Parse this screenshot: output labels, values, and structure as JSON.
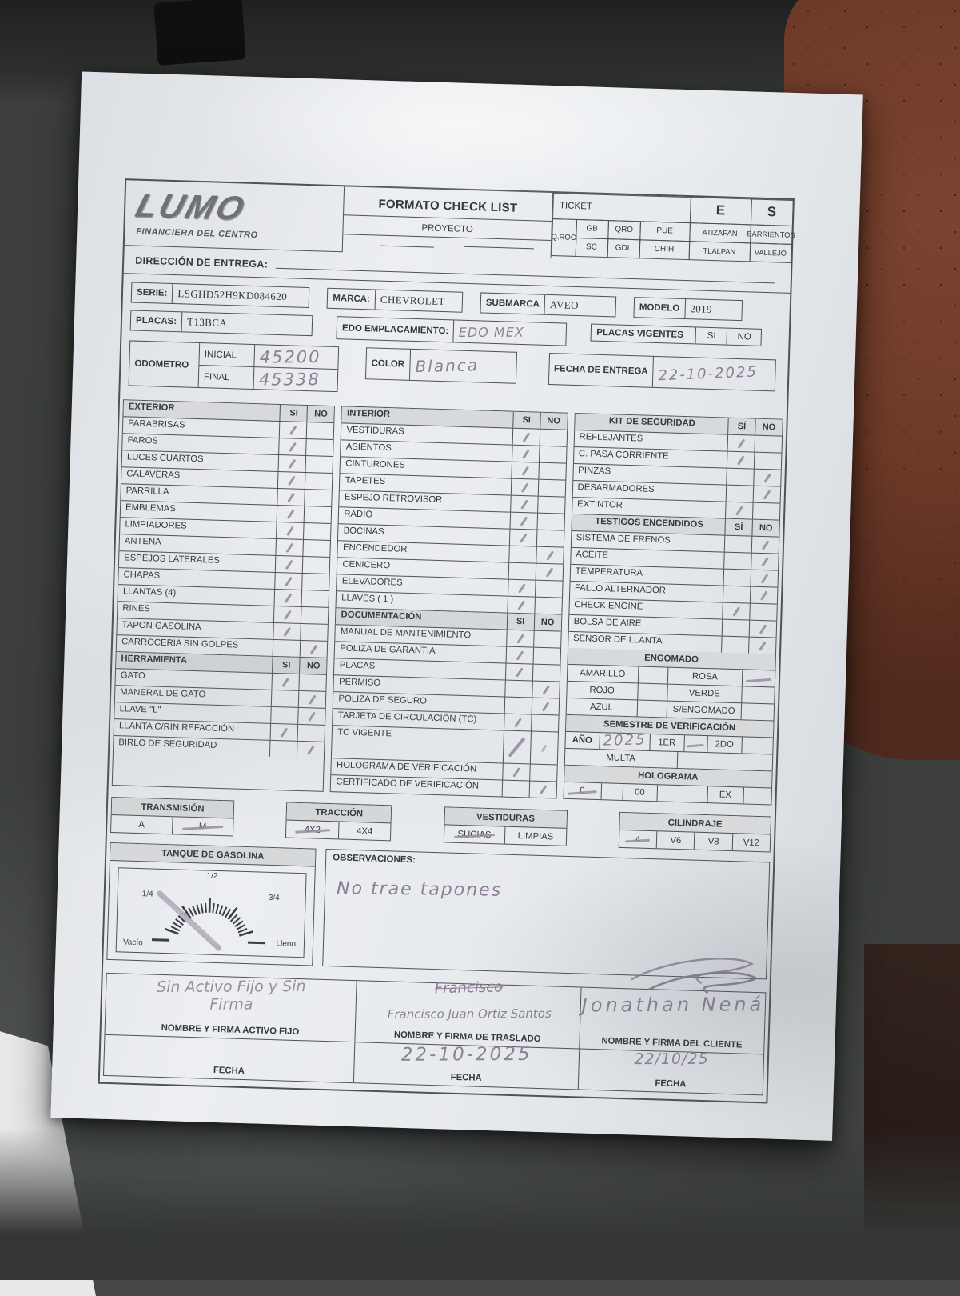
{
  "colors": {
    "paper": "#e9ebee",
    "line": "#4d5257",
    "pencil": "#8d7f95",
    "seat_gray": "#454846",
    "seat_red": "#6e3a28"
  },
  "header": {
    "logo": {
      "title": "LUMO",
      "subtitle": "FINANCIERA DEL CENTRO"
    },
    "form_title": "FORMATO CHECK LIST",
    "proyecto": "PROYECTO",
    "ticket": {
      "label": "TICKET",
      "e": "E",
      "s": "S",
      "row1": [
        "GB",
        "QRO",
        "PUE",
        "ATIZAPAN",
        "BARRIENTOS"
      ],
      "row2": [
        "SC",
        "GDL",
        "CHIH",
        "TLALPAN",
        "VALLEJO"
      ],
      "corner": "Q.ROO"
    },
    "direccion_label": "DIRECCIÓN DE ENTREGA:"
  },
  "vehicle": {
    "serie_label": "SERIE:",
    "serie": "LSGHD52H9KD084620",
    "marca_label": "MARCA:",
    "marca": "CHEVROLET",
    "submarca_label": "SUBMARCA",
    "submarca": "AVEO",
    "modelo_label": "MODELO",
    "modelo": "2019",
    "placas_label": "PLACAS:",
    "placas": "T13BCA",
    "edo_label": "EDO EMPLACAMIENTO:",
    "edo_value": "EDO MEX",
    "placas_vigentes_label": "PLACAS VIGENTES",
    "si": "SI",
    "no": "NO",
    "odometro_label": "ODOMETRO",
    "inicial_label": "INICIAL",
    "final_label": "FINAL",
    "odo_inicial": "45200",
    "odo_final": "45338",
    "color_label": "COLOR",
    "color_value": "Blanca",
    "fecha_entrega_label": "FECHA DE ENTREGA",
    "fecha_entrega": "22-10-2025"
  },
  "checklist": {
    "columns": [
      {
        "sections": [
          {
            "title": "EXTERIOR",
            "si": "SI",
            "no": "NO",
            "items": [
              {
                "label": "PARABRISAS",
                "check": "si"
              },
              {
                "label": "FAROS",
                "check": "si"
              },
              {
                "label": "LUCES CUARTOS",
                "check": "si"
              },
              {
                "label": "CALAVERAS",
                "check": "si"
              },
              {
                "label": "PARRILLA",
                "check": "si"
              },
              {
                "label": "EMBLEMAS",
                "check": "si"
              },
              {
                "label": "LIMPIADORES",
                "check": "si"
              },
              {
                "label": "ANTENA",
                "check": "si"
              },
              {
                "label": "ESPEJOS LATERALES",
                "check": "si"
              },
              {
                "label": "CHAPAS",
                "check": "si"
              },
              {
                "label": "LLANTAS (4)",
                "check": "si"
              },
              {
                "label": "RINES",
                "check": "si"
              },
              {
                "label": "TAPON GASOLINA",
                "check": "si"
              },
              {
                "label": "CARROCERIA SIN GOLPES",
                "check": "no"
              }
            ]
          },
          {
            "title": "HERRAMIENTA",
            "si": "SI",
            "no": "NO",
            "items": [
              {
                "label": "GATO",
                "check": "si"
              },
              {
                "label": "MANERAL DE GATO",
                "check": "no"
              },
              {
                "label": "LLAVE \"L\"",
                "check": "no"
              },
              {
                "label": "LLANTA C/RIN REFACCIÓN",
                "check": "si"
              },
              {
                "label": "BIRLO DE SEGURIDAD",
                "check": "no"
              }
            ]
          }
        ]
      },
      {
        "sections": [
          {
            "title": "INTERIOR",
            "si": "SI",
            "no": "NO",
            "items": [
              {
                "label": "VESTIDURAS",
                "check": "si"
              },
              {
                "label": "ASIENTOS",
                "check": "si"
              },
              {
                "label": "CINTURONES",
                "check": "si"
              },
              {
                "label": "TAPETES",
                "check": "si"
              },
              {
                "label": "ESPEJO RETROVISOR",
                "check": "si"
              },
              {
                "label": "RADIO",
                "check": "si"
              },
              {
                "label": "BOCINAS",
                "check": "si"
              },
              {
                "label": "ENCENDEDOR",
                "check": "no"
              },
              {
                "label": "CENICERO",
                "check": "no"
              },
              {
                "label": "ELEVADORES",
                "check": "si"
              },
              {
                "label": "LLAVES ( 1 )",
                "check": "si"
              }
            ]
          },
          {
            "title": "DOCUMENTACIÓN",
            "si": "SI",
            "no": "NO",
            "items": [
              {
                "label": "MANUAL DE MANTENIMIENTO",
                "check": "si"
              },
              {
                "label": "POLIZA DE GARANTIA",
                "check": "si"
              },
              {
                "label": "PLACAS",
                "check": "si"
              },
              {
                "label": "PERMISO",
                "check": "no"
              },
              {
                "label": "POLIZA DE SEGURO",
                "check": "no"
              },
              {
                "label": "TARJETA DE CIRCULACIÓN (TC)",
                "check": "si"
              },
              {
                "label": "TC VIGENTE",
                "check": "si",
                "tall": true,
                "extra_no": true
              },
              {
                "label": "HOLOGRAMA DE VERIFICACIÓN",
                "check": "si"
              },
              {
                "label": "CERTIFICADO DE VERIFICACIÓN",
                "check": "no"
              }
            ]
          }
        ]
      },
      {
        "sections": [
          {
            "title": "KIT DE SEGURIDAD",
            "si": "SÍ",
            "no": "NO",
            "items": [
              {
                "label": "REFLEJANTES",
                "check": "si"
              },
              {
                "label": "C. PASA CORRIENTE",
                "check": "si"
              },
              {
                "label": "PINZAS",
                "check": "no"
              },
              {
                "label": "DESARMADORES",
                "check": "no"
              },
              {
                "label": "EXTINTOR",
                "check": "si"
              }
            ]
          },
          {
            "title": "TESTIGOS ENCENDIDOS",
            "si": "SÍ",
            "no": "NO",
            "items": [
              {
                "label": "SISTEMA DE FRENOS",
                "check": "no"
              },
              {
                "label": "ACEITE",
                "check": "no"
              },
              {
                "label": "TEMPERATURA",
                "check": "no"
              },
              {
                "label": "FALLO ALTERNADOR",
                "check": "no"
              },
              {
                "label": "CHECK ENGINE",
                "check": "si"
              },
              {
                "label": "BOLSA DE AIRE",
                "check": "no"
              },
              {
                "label": "SENSOR DE LLANTA",
                "check": "no"
              }
            ]
          }
        ]
      }
    ],
    "engomado": {
      "title": "ENGOMADO",
      "rows": [
        {
          "left": "AMARILLO",
          "left_mark": false,
          "right": "ROSA",
          "right_mark": true
        },
        {
          "left": "ROJO",
          "left_mark": false,
          "right": "VERDE",
          "right_mark": false
        },
        {
          "left": "AZUL",
          "left_mark": false,
          "right": "S/ENGOMADO",
          "right_mark": false
        }
      ]
    },
    "semestre": {
      "title": "SEMESTRE DE VERIFICACIÓN",
      "anio_label": "AÑO",
      "anio_value": "2025",
      "opt1": "1ER",
      "opt1_mark": true,
      "opt2": "2DO",
      "opt2_mark": false,
      "multa_label": "MULTA"
    },
    "holograma": {
      "title": "HOLOGRAMA",
      "cells": [
        {
          "label": "0",
          "mark": true
        },
        {
          "label": "00",
          "mark": false
        },
        {
          "label": "EX",
          "mark": false
        }
      ]
    }
  },
  "options": {
    "transmision": {
      "title": "TRANSMISIÓN",
      "cells": [
        {
          "label": "A",
          "mark": false
        },
        {
          "label": "M",
          "mark": true
        }
      ]
    },
    "traccion": {
      "title": "TRACCIÓN",
      "cells": [
        {
          "label": "4X2",
          "mark": true
        },
        {
          "label": "4X4",
          "mark": false
        }
      ]
    },
    "vestiduras": {
      "title": "VESTIDURAS",
      "cells": [
        {
          "label": "SUCIAS",
          "mark": true
        },
        {
          "label": "LIMPIAS",
          "mark": false
        }
      ]
    },
    "cilindraje": {
      "title": "CILINDRAJE",
      "cells": [
        {
          "label": "4",
          "mark": true
        },
        {
          "label": "V6",
          "mark": false
        },
        {
          "label": "V8",
          "mark": false
        },
        {
          "label": "V12",
          "mark": false
        }
      ]
    }
  },
  "fuel": {
    "title": "TANQUE DE GASOLINA",
    "empty": "Vacío",
    "q1": "1/4",
    "half": "1/2",
    "q3": "3/4",
    "full": "Lleno"
  },
  "observations": {
    "label": "OBSERVACIONES:",
    "text": "No trae tapones"
  },
  "signatures": {
    "activo": {
      "written_line1": "Sin Activo Fijo y Sin",
      "written_line2": "Firma",
      "label": "NOMBRE Y FIRMA ACTIVO FIJO",
      "fecha_label": "FECHA",
      "fecha_value": ""
    },
    "traslado": {
      "scribble": "Francisco",
      "name": "Francisco Juan Ortiz Santos",
      "label": "NOMBRE Y FIRMA DE TRASLADO",
      "fecha_label": "FECHA",
      "fecha_value": "22-10-2025"
    },
    "cliente": {
      "name": "Jonathan  Nená",
      "label": "NOMBRE Y FIRMA DEL CLIENTE",
      "fecha_label": "FECHA",
      "fecha_value": "22/10/25"
    }
  }
}
